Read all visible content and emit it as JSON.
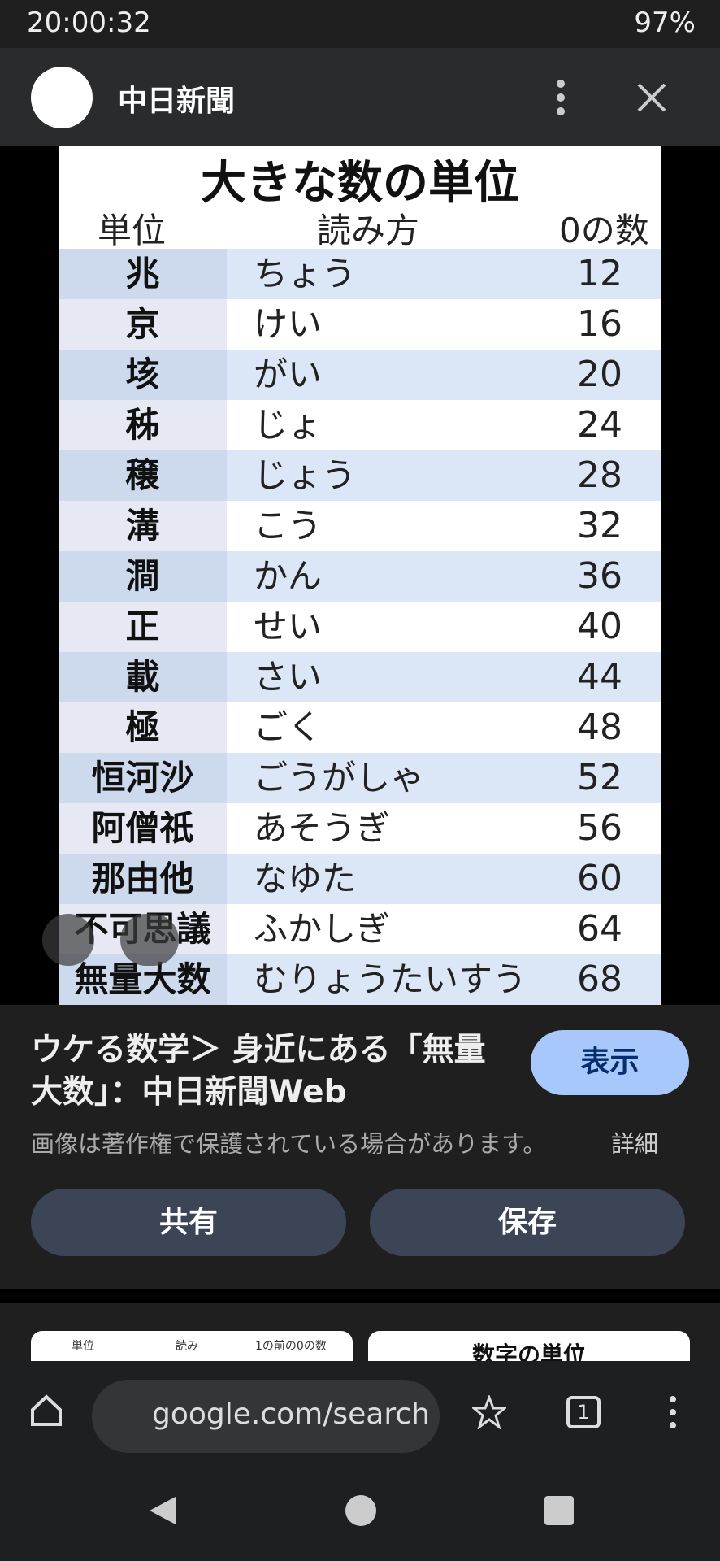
{
  "status_bar": {
    "time": "20:00:32",
    "battery": "97%"
  },
  "header": {
    "title": "中日新聞"
  },
  "image": {
    "title": "大きな数の単位",
    "columns": [
      "単位",
      "読み方",
      "0の数"
    ],
    "rows": [
      [
        "兆",
        "ちょう",
        12
      ],
      [
        "京",
        "けい",
        16
      ],
      [
        "垓",
        "がい",
        20
      ],
      [
        "秭",
        "じょ",
        24
      ],
      [
        "穣",
        "じょう",
        28
      ],
      [
        "溝",
        "こう",
        32
      ],
      [
        "澗",
        "かん",
        36
      ],
      [
        "正",
        "せい",
        40
      ],
      [
        "載",
        "さい",
        44
      ],
      [
        "極",
        "ごく",
        48
      ],
      [
        "恒河沙",
        "ごうがしゃ",
        52
      ],
      [
        "阿僧祇",
        "あそうぎ",
        56
      ],
      [
        "那由他",
        "なゆた",
        60
      ],
      [
        "不可思議",
        "ふかしぎ",
        64
      ],
      [
        "無量大数",
        "むりょうたいすう",
        68
      ]
    ]
  },
  "result": {
    "caption": "ウケる数学＞ 身近にある「無量大数」：中日新聞Web",
    "visit": "表示",
    "notice": "画像は著作権で保護されている場合があります。",
    "details": "詳細",
    "share": "共有",
    "save": "保存"
  },
  "related": {
    "thumb1": [
      "単位",
      "読み",
      "1の前の0の数"
    ],
    "thumb2_title": "数字の単位"
  },
  "browser": {
    "url": "google.com/search",
    "tabs": "1"
  }
}
